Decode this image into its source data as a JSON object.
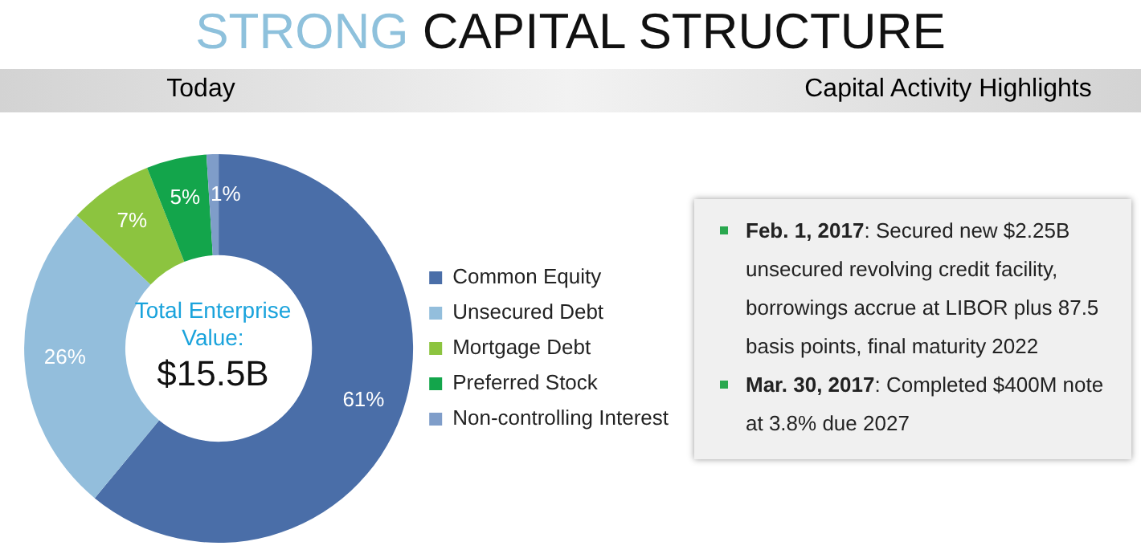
{
  "chart_data": {
    "type": "donut",
    "title": "STRONG CAPITAL STRUCTURE",
    "subtitle": "Today",
    "categories": [
      "Common Equity",
      "Unsecured Debt",
      "Mortgage Debt",
      "Preferred Stock",
      "Non-controlling Interest"
    ],
    "values": [
      61,
      26,
      7,
      5,
      1
    ],
    "colors": [
      "#4a6ea8",
      "#93bedc",
      "#8cc43f",
      "#13a54b",
      "#7f9dc9"
    ],
    "value_labels": [
      "61%",
      "26%",
      "7%",
      "5%",
      "1%"
    ],
    "legend": "right",
    "annotations": [
      "Capital Activity Highlights",
      "Total Enterprise Value:",
      "$15.5B",
      "Feb. 1, 2017: Secured new $2.25B unsecured revolving credit facility, borrowings accrue at LIBOR plus 87.5 basis points, final maturity 2022",
      "Mar. 30, 2017: Completed $400M note at 3.8% due 2027"
    ]
  }
}
